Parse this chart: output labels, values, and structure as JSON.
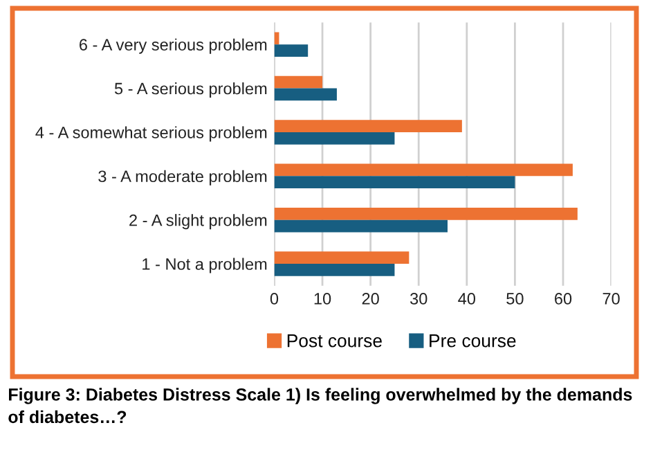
{
  "chart_data": {
    "type": "bar",
    "orientation": "horizontal",
    "categories": [
      "6 - A very serious problem",
      "5 - A serious problem",
      "4 - A somewhat serious problem",
      "3 - A moderate problem",
      "2 - A slight problem",
      "1 - Not a problem"
    ],
    "series": [
      {
        "name": "Post course",
        "color": "#ed7232",
        "values": [
          1,
          10,
          39,
          62,
          63,
          28
        ]
      },
      {
        "name": "Pre course",
        "color": "#175e81",
        "values": [
          7,
          13,
          25,
          50,
          36,
          25
        ]
      }
    ],
    "xlim": [
      0,
      70
    ],
    "xticks": [
      0,
      10,
      20,
      30,
      40,
      50,
      60,
      70
    ],
    "grid": "x",
    "legend": "bottom",
    "annotations": [
      "Figure 3: Diabetes Distress Scale 1) Is feeling overwhelmed by the demands of diabetes…?"
    ]
  }
}
